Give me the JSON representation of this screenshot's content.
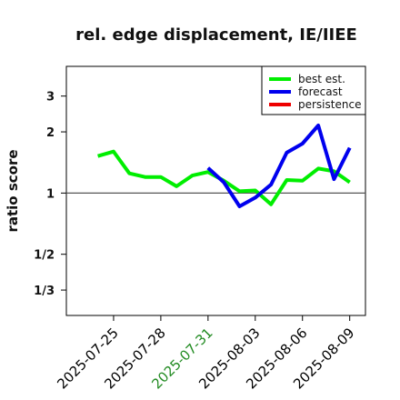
{
  "chart_data": {
    "type": "line",
    "title": "rel. edge displacement, IE/IIEE",
    "xlabel": "",
    "ylabel": "ratio score",
    "y_scale": "log",
    "y_ticks": [
      {
        "label": "1/3",
        "value": 0.3333
      },
      {
        "label": "1/2",
        "value": 0.5
      },
      {
        "label": "1",
        "value": 1
      },
      {
        "label": "2",
        "value": 2
      },
      {
        "label": "3",
        "value": 3
      }
    ],
    "ylim": [
      0.25,
      4.2
    ],
    "x_ticks": [
      {
        "label": "2025-07-25",
        "value": "2025-07-25",
        "color": "#000000"
      },
      {
        "label": "2025-07-28",
        "value": "2025-07-28",
        "color": "#000000"
      },
      {
        "label": "2025-07-31",
        "value": "2025-07-31",
        "color": "#228b22"
      },
      {
        "label": "2025-08-03",
        "value": "2025-08-03",
        "color": "#000000"
      },
      {
        "label": "2025-08-06",
        "value": "2025-08-06",
        "color": "#000000"
      },
      {
        "label": "2025-08-09",
        "value": "2025-08-09",
        "color": "#000000"
      }
    ],
    "xlim": [
      "2025-07-22",
      "2025-08-10"
    ],
    "reference_line": 1,
    "legend_position": "top-right",
    "series": [
      {
        "name": "best est.",
        "color": "#00ee00",
        "x": [
          "2025-07-24",
          "2025-07-25",
          "2025-07-26",
          "2025-07-27",
          "2025-07-28",
          "2025-07-29",
          "2025-07-30",
          "2025-07-31",
          "2025-08-01",
          "2025-08-02",
          "2025-08-03",
          "2025-08-04",
          "2025-08-05",
          "2025-08-06",
          "2025-08-07",
          "2025-08-08",
          "2025-08-09"
        ],
        "values": [
          1.52,
          1.6,
          1.25,
          1.2,
          1.2,
          1.08,
          1.22,
          1.27,
          1.15,
          1.02,
          1.03,
          0.88,
          1.16,
          1.15,
          1.32,
          1.28,
          1.13
        ]
      },
      {
        "name": "forecast",
        "color": "#0000ee",
        "x": [
          "2025-07-31",
          "2025-08-01",
          "2025-08-02",
          "2025-08-03",
          "2025-08-04",
          "2025-08-05",
          "2025-08-06",
          "2025-08-07",
          "2025-08-08",
          "2025-08-09"
        ],
        "values": [
          1.33,
          1.13,
          0.86,
          0.95,
          1.1,
          1.58,
          1.75,
          2.15,
          1.17,
          1.67
        ]
      },
      {
        "name": "persistence",
        "color": "#ee0000",
        "x": [],
        "values": []
      }
    ]
  }
}
